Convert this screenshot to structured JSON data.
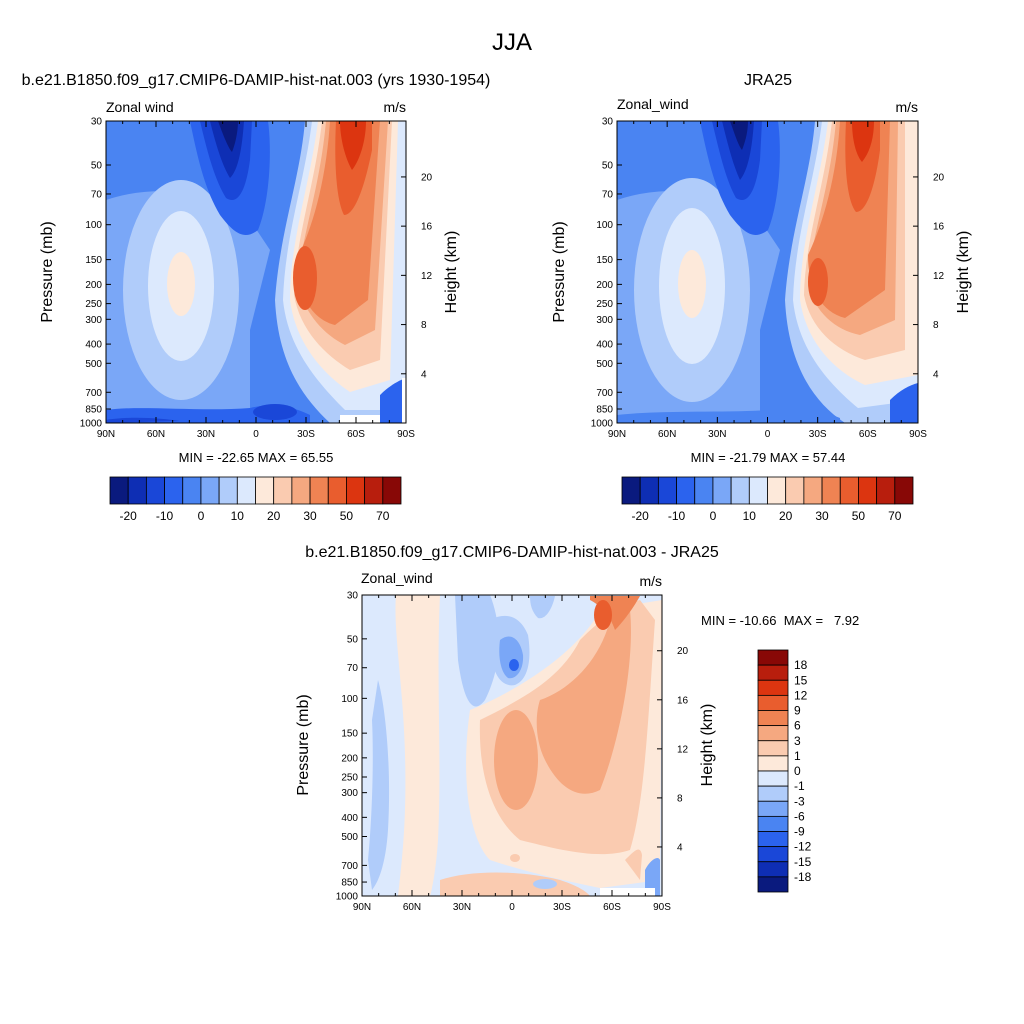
{
  "figure": {
    "title": "JJA"
  },
  "colors": {
    "panel_scale": [
      "#0A1A7E",
      "#0E2EB4",
      "#1A47D8",
      "#2B63EE",
      "#4A84F2",
      "#7AA7F7",
      "#B0CCFA",
      "#DCE9FD",
      "#FDE9DA",
      "#FACBB0",
      "#F5A880",
      "#EF8353",
      "#E95D2E",
      "#DC3510",
      "#B81E0D",
      "#880806"
    ],
    "diff_scale": [
      "#0A1A7E",
      "#0E2EB4",
      "#1A47D8",
      "#2B63EE",
      "#4A84F2",
      "#7AA7F7",
      "#B0CCFA",
      "#DCE9FD",
      "#FDE9DA",
      "#FACBB0",
      "#F5A880",
      "#EF8353",
      "#E95D2E",
      "#DC3510",
      "#B81E0D",
      "#880806"
    ]
  },
  "chart_data": [
    {
      "type": "heatmap",
      "title": "b.e21.B1850.f09_g17.CMIP6-DAMIP-hist-nat.003 (yrs 1930-1954)",
      "left_label": "Zonal wind",
      "units": "m/s",
      "ylabel": "Pressure (mb)",
      "y2label": "Height (km)",
      "xticks": [
        "90N",
        "60N",
        "30N",
        "0",
        "30S",
        "60S",
        "90S"
      ],
      "yticks": [
        "30",
        "50",
        "70",
        "100",
        "150",
        "200",
        "250",
        "300",
        "400",
        "500",
        "700",
        "850",
        "1000"
      ],
      "y2ticks": [
        "20",
        "16",
        "12",
        "8",
        "4"
      ],
      "stats": "MIN = -22.65  MAX = 65.55",
      "min": -22.65,
      "max": 65.55,
      "colorbar_labels": [
        "-20",
        "-10",
        "0",
        "10",
        "20",
        "30",
        "50",
        "70"
      ],
      "ylim": [
        1000,
        30
      ],
      "xlim": [
        "90N",
        "90S"
      ]
    },
    {
      "type": "heatmap",
      "title": "JRA25",
      "left_label": "Zonal_wind",
      "units": "m/s",
      "ylabel": "Pressure (mb)",
      "y2label": "Height (km)",
      "xticks": [
        "90N",
        "60N",
        "30N",
        "0",
        "30S",
        "60S",
        "90S"
      ],
      "yticks": [
        "30",
        "50",
        "70",
        "100",
        "150",
        "200",
        "250",
        "300",
        "400",
        "500",
        "700",
        "850",
        "1000"
      ],
      "y2ticks": [
        "20",
        "16",
        "12",
        "8",
        "4"
      ],
      "stats": "MIN = -21.79  MAX = 57.44",
      "min": -21.79,
      "max": 57.44,
      "colorbar_labels": [
        "-20",
        "-10",
        "0",
        "10",
        "20",
        "30",
        "50",
        "70"
      ],
      "ylim": [
        1000,
        30
      ],
      "xlim": [
        "90N",
        "90S"
      ]
    },
    {
      "type": "heatmap",
      "title": "b.e21.B1850.f09_g17.CMIP6-DAMIP-hist-nat.003 - JRA25",
      "left_label": "Zonal_wind",
      "units": "m/s",
      "ylabel": "Pressure (mb)",
      "y2label": "Height (km)",
      "xticks": [
        "90N",
        "60N",
        "30N",
        "0",
        "30S",
        "60S",
        "90S"
      ],
      "yticks": [
        "30",
        "50",
        "70",
        "100",
        "150",
        "200",
        "250",
        "300",
        "400",
        "500",
        "700",
        "850",
        "1000"
      ],
      "y2ticks": [
        "20",
        "16",
        "12",
        "8",
        "4"
      ],
      "stats": "MIN = -10.66  MAX =   7.92",
      "min": -10.66,
      "max": 7.92,
      "colorbar_labels": [
        "18",
        "15",
        "12",
        "9",
        "6",
        "3",
        "1",
        "0",
        "-1",
        "-3",
        "-6",
        "-9",
        "-12",
        "-15",
        "-18"
      ],
      "ylim": [
        1000,
        30
      ],
      "xlim": [
        "90N",
        "90S"
      ]
    }
  ]
}
